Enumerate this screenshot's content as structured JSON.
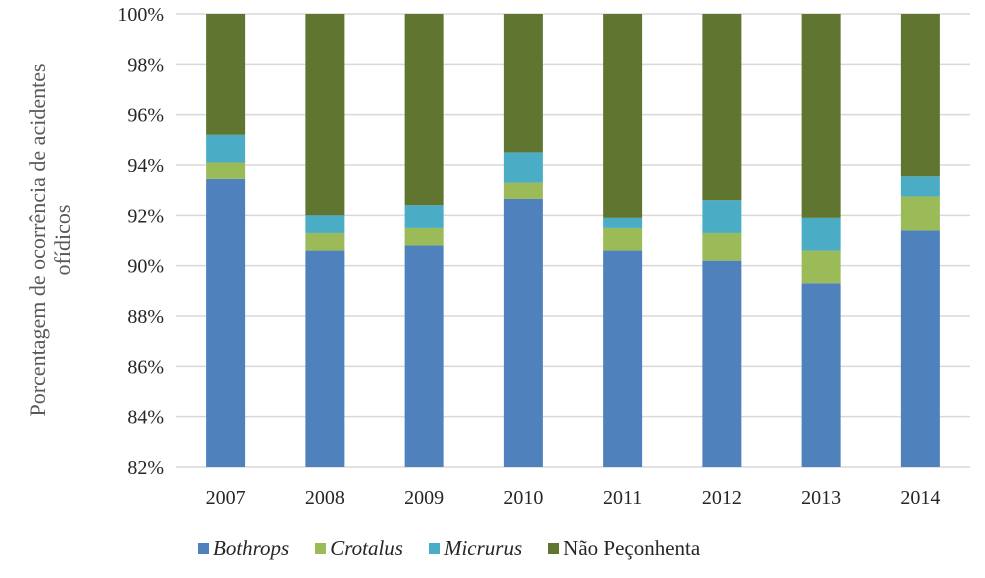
{
  "chart_data": {
    "type": "bar",
    "stacked": true,
    "title": "",
    "xlabel": "",
    "ylabel": "Porcentagem de ocorrência de acidentes ofídicos",
    "ylim": [
      82,
      100
    ],
    "yticks": [
      "82%",
      "84%",
      "86%",
      "88%",
      "90%",
      "92%",
      "94%",
      "96%",
      "98%",
      "100%"
    ],
    "ytick_values": [
      82,
      84,
      86,
      88,
      90,
      92,
      94,
      96,
      98,
      100
    ],
    "grid": true,
    "legend_position": "bottom",
    "categories": [
      "2007",
      "2008",
      "2009",
      "2010",
      "2011",
      "2012",
      "2013",
      "2014"
    ],
    "series": [
      {
        "name": "Bothrops",
        "italic": true,
        "color": "#4F81BD",
        "values": [
          93.45,
          90.6,
          90.8,
          92.65,
          90.6,
          90.2,
          89.3,
          91.4
        ]
      },
      {
        "name": "Crotalus",
        "italic": true,
        "color": "#9BBB59",
        "values": [
          0.65,
          0.7,
          0.7,
          0.65,
          0.9,
          1.1,
          1.3,
          1.35
        ]
      },
      {
        "name": "Micrurus",
        "italic": true,
        "color": "#4BACC6",
        "values": [
          1.1,
          0.7,
          0.9,
          1.2,
          0.4,
          1.3,
          1.3,
          0.8
        ]
      },
      {
        "name": "Não Peçonhenta",
        "italic": false,
        "color": "#5F7530",
        "values": [
          4.8,
          8.0,
          7.6,
          5.5,
          8.1,
          7.4,
          8.1,
          6.45
        ]
      }
    ]
  }
}
